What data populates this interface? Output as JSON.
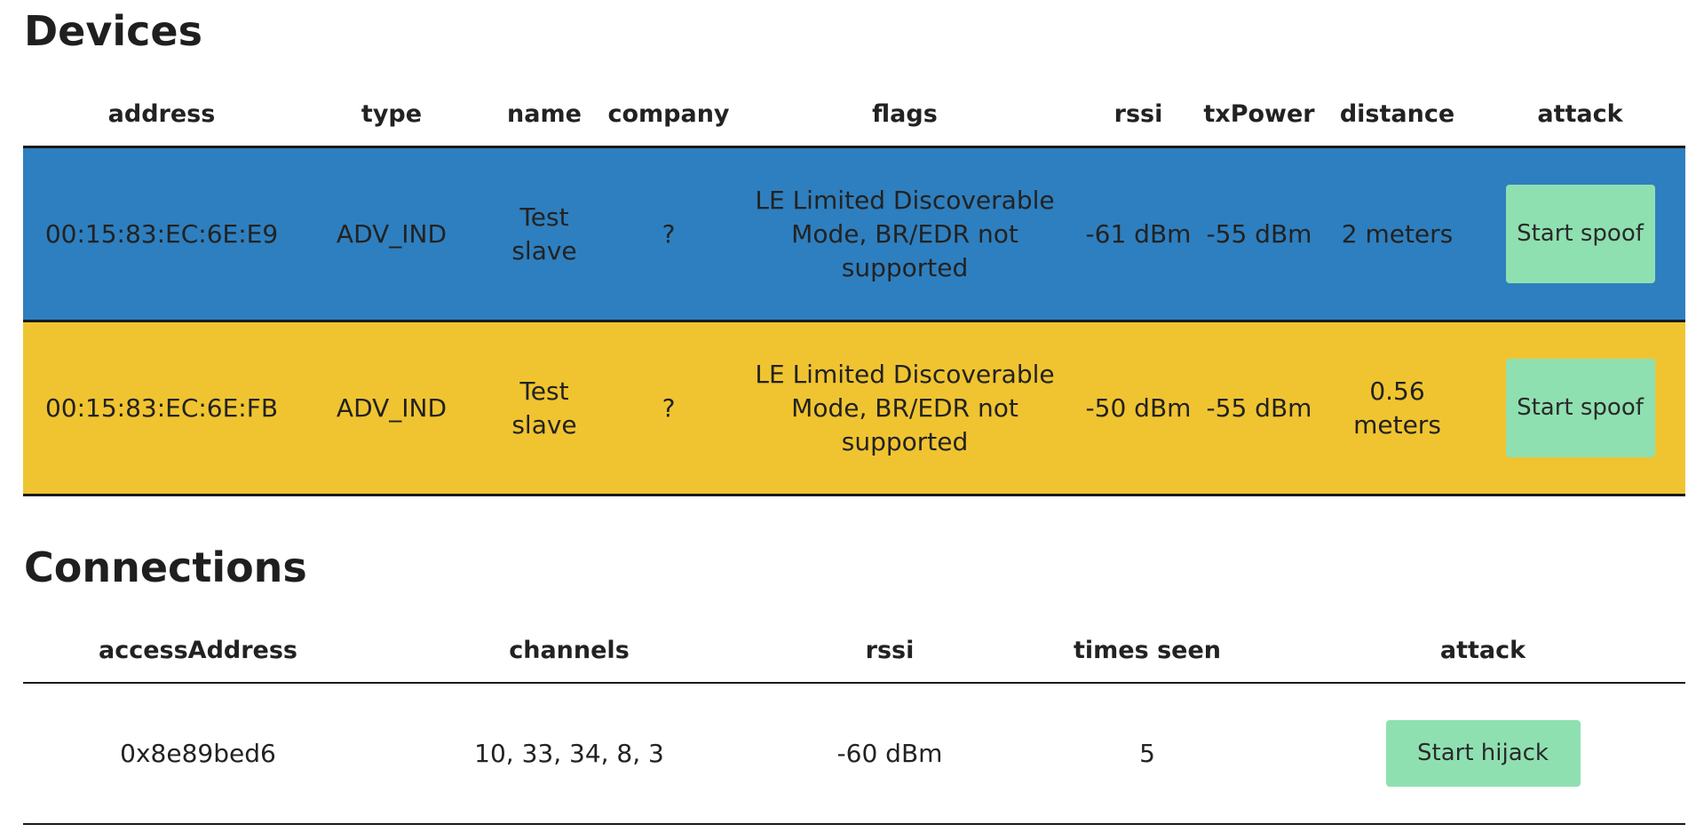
{
  "devices": {
    "title": "Devices",
    "headers": {
      "address": "address",
      "type": "type",
      "name": "name",
      "company": "company",
      "flags": "flags",
      "rssi": "rssi",
      "txPower": "txPower",
      "distance": "distance",
      "attack": "attack"
    },
    "rows": [
      {
        "row_color": "#2e7fbf",
        "address": "00:15:83:EC:6E:E9",
        "type": "ADV_IND",
        "name": "Test slave",
        "company": "?",
        "flags": "LE Limited Discoverable Mode, BR/EDR not supported",
        "rssi": "-61 dBm",
        "txPower": "-55 dBm",
        "distance": "2 meters",
        "attack_label": "Start spoof"
      },
      {
        "row_color": "#f0c430",
        "address": "00:15:83:EC:6E:FB",
        "type": "ADV_IND",
        "name": "Test slave",
        "company": "?",
        "flags": "LE Limited Discoverable Mode, BR/EDR not supported",
        "rssi": "-50 dBm",
        "txPower": "-55 dBm",
        "distance": "0.56 meters",
        "attack_label": "Start spoof"
      }
    ]
  },
  "connections": {
    "title": "Connections",
    "headers": {
      "accessAddress": "accessAddress",
      "channels": "channels",
      "rssi": "rssi",
      "times_seen": "times seen",
      "attack": "attack"
    },
    "rows": [
      {
        "accessAddress": "0x8e89bed6",
        "channels": "10, 33, 34, 8, 3",
        "rssi": "-60 dBm",
        "times_seen": "5",
        "attack_label": "Start hijack"
      }
    ]
  },
  "colors": {
    "button_accent": "#8fe0b1",
    "row_selected_blue": "#2e7fbf",
    "row_highlight_yellow": "#f0c430"
  }
}
